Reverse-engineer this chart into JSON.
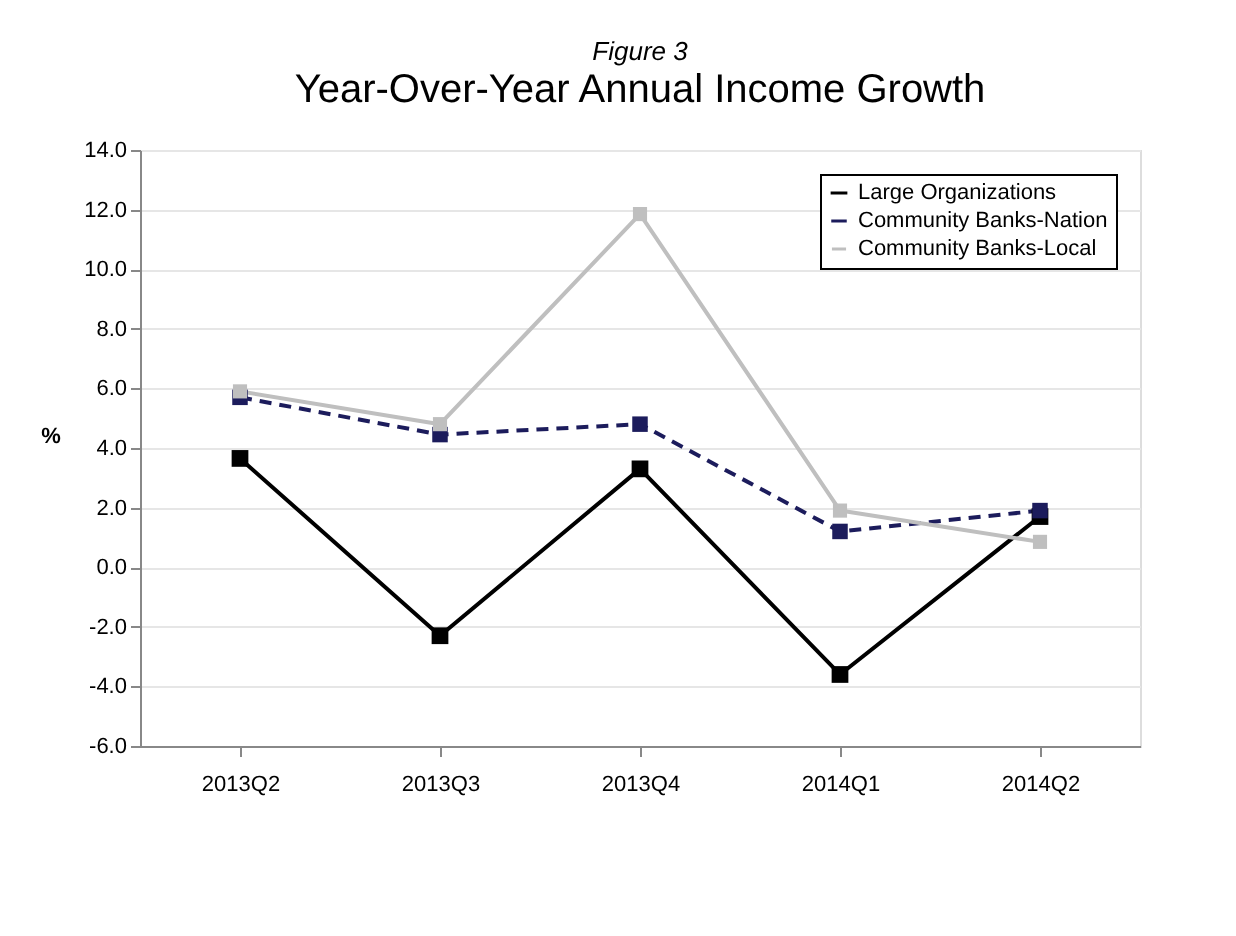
{
  "chart_data": {
    "type": "line",
    "subtitle": "Figure 3",
    "title": "Year-Over-Year Annual Income Growth",
    "ylabel": "%",
    "categories": [
      "2013Q2",
      "2013Q3",
      "2013Q4",
      "2014Q1",
      "2014Q2"
    ],
    "series": [
      {
        "name": "Large Organizations",
        "color": "#000000",
        "line_style": "solid",
        "values": [
          3.65,
          -2.3,
          3.3,
          -3.6,
          1.7
        ]
      },
      {
        "name": "Community Banks-Nation",
        "color": "#1c1c5c",
        "line_style": "dashed",
        "values": [
          5.7,
          4.45,
          4.8,
          1.2,
          1.9
        ]
      },
      {
        "name": "Community Banks-Local",
        "color": "#bfbfbf",
        "line_style": "solid",
        "values": [
          5.9,
          4.8,
          11.85,
          1.9,
          0.85
        ]
      }
    ],
    "ylim": [
      -6,
      14
    ],
    "yticks": [
      {
        "value": -6,
        "label": "-6.0"
      },
      {
        "value": -4,
        "label": "-4.0"
      },
      {
        "value": -2,
        "label": "-2.0"
      },
      {
        "value": 0,
        "label": "0.0"
      },
      {
        "value": 2,
        "label": "2.0"
      },
      {
        "value": 4,
        "label": "4.0"
      },
      {
        "value": 6,
        "label": "6.0"
      },
      {
        "value": 8,
        "label": "8.0"
      },
      {
        "value": 10,
        "label": "10.0"
      },
      {
        "value": 12,
        "label": "12.0"
      },
      {
        "value": 14,
        "label": "14.0"
      }
    ],
    "grid": "y",
    "legend": "top right",
    "marker": "square"
  }
}
